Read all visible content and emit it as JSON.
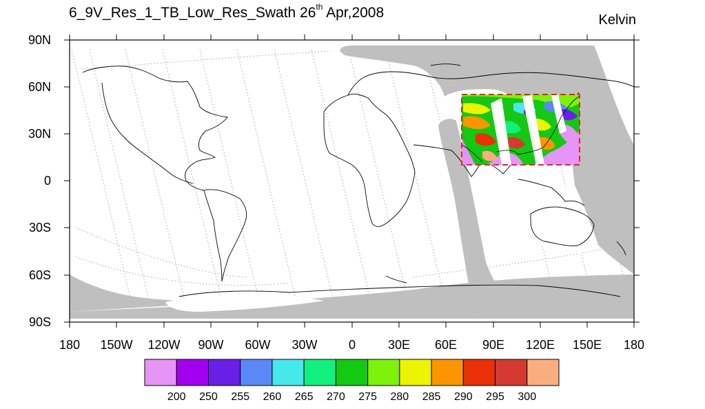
{
  "title": {
    "main": "6_9V_Res_1_TB_Low_Res_Swath 26",
    "sup": "th",
    "rest": " Apr,2008"
  },
  "units": "Kelvin",
  "axes": {
    "lat_labels": [
      "90N",
      "60N",
      "30N",
      "0",
      "30S",
      "60S",
      "90S"
    ],
    "lon_labels": [
      "180",
      "150W",
      "120W",
      "90W",
      "60W",
      "30W",
      "0",
      "30E",
      "60E",
      "90E",
      "120E",
      "150E",
      "180"
    ]
  },
  "region_box": {
    "lon_min": 70,
    "lon_max": 145,
    "lat_min": 10,
    "lat_max": 55
  },
  "colorbar": {
    "colors": [
      "#e495f5",
      "#a400f0",
      "#6a1fe6",
      "#5a88f6",
      "#47e8ec",
      "#12f07d",
      "#14c814",
      "#7df20a",
      "#ecf400",
      "#fb9500",
      "#e93006",
      "#d43a32",
      "#faae80"
    ],
    "labels": [
      "200",
      "250",
      "255",
      "260",
      "265",
      "270",
      "275",
      "280",
      "285",
      "290",
      "295",
      "300"
    ]
  },
  "colors": {
    "swath": "#bfbfbf",
    "box": "#e8202c",
    "orbit_track": "#b4b4b4"
  }
}
